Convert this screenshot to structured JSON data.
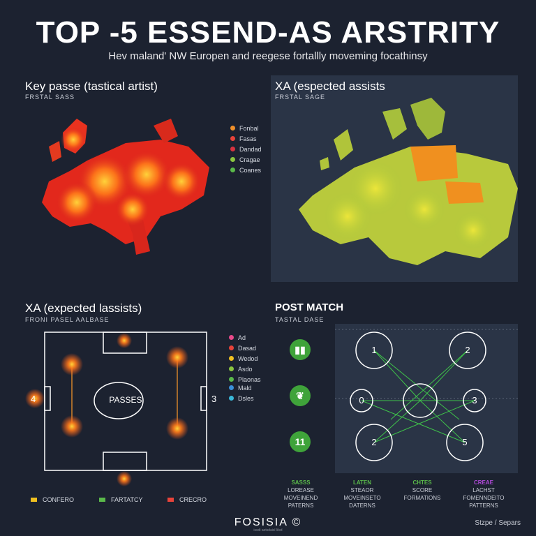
{
  "header": {
    "title": "TOP -5 ESSEND-AS ARSTRITY",
    "subtitle": "Hev maland' NW Europen and reegese fortallly moveming focathinsy"
  },
  "panel_tl": {
    "title": "Key passe (tastical artist)",
    "subtitle": "FRSTAL SASS",
    "legend": [
      {
        "label": "Fonbal",
        "color": "#f0902a"
      },
      {
        "label": "Fasas",
        "color": "#e8433a"
      },
      {
        "label": "Dandad",
        "color": "#d63340"
      },
      {
        "label": "Cragae",
        "color": "#8bc53f"
      },
      {
        "label": "Coanes",
        "color": "#5ab94a"
      }
    ]
  },
  "panel_tr": {
    "title": "XA (espected assists",
    "subtitle": "FRSTAL SAGE"
  },
  "panel_bl": {
    "title": "XA (expected lassists)",
    "subtitle": "FRONI PASEL AALBASE",
    "center_label": "PASSES",
    "left_marker": "4",
    "right_marker": "3",
    "legend_a": [
      {
        "label": "Ad",
        "color": "#e84a8a"
      },
      {
        "label": "Dasad",
        "color": "#e8433a"
      },
      {
        "label": "Wedod",
        "color": "#f0c020"
      },
      {
        "label": "Asdo",
        "color": "#8bc53f"
      },
      {
        "label": "Plaonas",
        "color": "#5ab94a"
      }
    ],
    "legend_b": [
      {
        "label": "Mald",
        "color": "#3a8fd8"
      },
      {
        "label": "Dsles",
        "color": "#3ab8d8"
      }
    ],
    "bottom_legend": [
      {
        "label": "CONFERO",
        "color": "#f0c020"
      },
      {
        "label": "FARTATCY",
        "color": "#5ab94a"
      },
      {
        "label": "CRECRO",
        "color": "#e8433a"
      }
    ]
  },
  "panel_br": {
    "title": "POST MATCH",
    "subtitle": "TASTAL DASE",
    "icons": [
      {
        "name": "boots-icon",
        "glyph": "▮▮"
      },
      {
        "name": "leaf-icon",
        "glyph": "❦"
      },
      {
        "name": "eleven-icon",
        "glyph": "11"
      }
    ],
    "nodes": [
      "1",
      "2",
      "0",
      "3",
      "2",
      "5"
    ],
    "patterns": [
      {
        "heading": "SASSS",
        "line1": "LOREASE",
        "line2": "MOVEINEND",
        "line3": "PATERNS",
        "color": "#5ab94a"
      },
      {
        "heading": "LATEN",
        "line1": "STEAOR",
        "line2": "MOVEINSETO",
        "line3": "DATERNS",
        "color": "#5ab94a"
      },
      {
        "heading": "CHTES",
        "line1": "SCORE",
        "line2": "FORMATIONS",
        "line3": "",
        "color": "#5ab94a"
      },
      {
        "heading": "CREAE",
        "line1": "LACHST",
        "line2": "FOMENNDEITO",
        "line3": "PATTERNS",
        "color": "#b04ad8"
      }
    ]
  },
  "footer": {
    "brand": "FOSISIA",
    "brand_sub": "issdi aetsdaisl lilsd",
    "right": "Stzpe / Separs"
  }
}
